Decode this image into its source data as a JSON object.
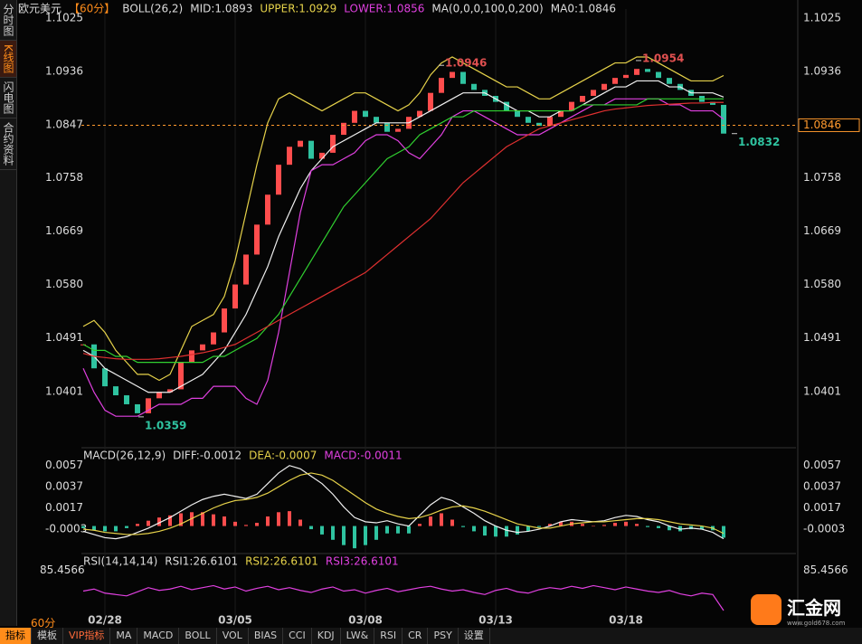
{
  "sidebar": [
    "分时图",
    "K线图",
    "闪电图",
    "合约资料"
  ],
  "header": [
    {
      "text": "欧元美元",
      "color": "#dddddd"
    },
    {
      "text": "【60分】",
      "color": "#ff8c1a"
    },
    {
      "text": "BOLL(26,2)",
      "color": "#dddddd"
    },
    {
      "text": "MID:1.0893",
      "color": "#dddddd"
    },
    {
      "text": "UPPER:1.0929",
      "color": "#e6d24a"
    },
    {
      "text": "LOWER:1.0856",
      "color": "#e040e0"
    },
    {
      "text": "MA(0,0,0,100,0,200)",
      "color": "#dddddd"
    },
    {
      "text": "MA0:1.0846",
      "color": "#dddddd"
    }
  ],
  "price": {
    "ylim": [
      1.0315,
      1.104
    ],
    "yticks": [
      {
        "value": 1.1025,
        "label": "1.1025"
      },
      {
        "value": 1.0936,
        "label": "1.0936"
      },
      {
        "value": 1.0847,
        "label": "1.0847"
      },
      {
        "value": 1.0758,
        "label": "1.0758"
      },
      {
        "value": 1.0669,
        "label": "1.0669"
      },
      {
        "value": 1.058,
        "label": "1.0580"
      },
      {
        "value": 1.0491,
        "label": "1.0491"
      },
      {
        "value": 1.0401,
        "label": "1.0401"
      }
    ],
    "close": [
      1.048,
      1.044,
      1.041,
      1.0395,
      1.038,
      1.0365,
      1.039,
      1.04,
      1.0405,
      1.045,
      1.047,
      1.048,
      1.05,
      1.054,
      1.058,
      1.063,
      1.068,
      1.073,
      1.078,
      1.081,
      1.082,
      1.079,
      1.08,
      1.083,
      1.085,
      1.087,
      1.086,
      1.085,
      1.0835,
      1.084,
      1.086,
      1.087,
      1.09,
      1.0925,
      1.0935,
      1.0915,
      1.0905,
      1.0895,
      1.0885,
      1.087,
      1.086,
      1.085,
      1.0845,
      1.086,
      1.087,
      1.0885,
      1.0895,
      1.0905,
      1.0915,
      1.0925,
      1.093,
      1.094,
      1.0935,
      1.0925,
      1.0915,
      1.0905,
      1.0895,
      1.0885,
      1.088,
      1.0832
    ],
    "up_color": "#ff4d4d",
    "down_color": "#2fc3a0",
    "lines": [
      {
        "color": "#e6d24a",
        "values": [
          1.051,
          1.052,
          1.05,
          1.047,
          1.045,
          1.043,
          1.043,
          1.042,
          1.043,
          1.047,
          1.051,
          1.052,
          1.053,
          1.056,
          1.062,
          1.07,
          1.078,
          1.085,
          1.089,
          1.09,
          1.089,
          1.088,
          1.087,
          1.088,
          1.089,
          1.09,
          1.09,
          1.089,
          1.088,
          1.087,
          1.088,
          1.09,
          1.093,
          1.095,
          1.096,
          1.095,
          1.094,
          1.093,
          1.092,
          1.091,
          1.091,
          1.09,
          1.089,
          1.089,
          1.09,
          1.091,
          1.092,
          1.093,
          1.094,
          1.095,
          1.095,
          1.096,
          1.096,
          1.095,
          1.094,
          1.093,
          1.092,
          1.092,
          1.092,
          1.0929
        ]
      },
      {
        "color": "#f0f0f0",
        "values": [
          1.047,
          1.046,
          1.044,
          1.043,
          1.042,
          1.041,
          1.04,
          1.04,
          1.04,
          1.041,
          1.042,
          1.043,
          1.045,
          1.047,
          1.05,
          1.053,
          1.057,
          1.061,
          1.066,
          1.07,
          1.074,
          1.077,
          1.079,
          1.081,
          1.082,
          1.083,
          1.084,
          1.085,
          1.085,
          1.085,
          1.085,
          1.086,
          1.087,
          1.088,
          1.089,
          1.09,
          1.09,
          1.09,
          1.089,
          1.088,
          1.087,
          1.087,
          1.086,
          1.086,
          1.087,
          1.087,
          1.088,
          1.089,
          1.09,
          1.091,
          1.091,
          1.092,
          1.092,
          1.092,
          1.091,
          1.091,
          1.09,
          1.09,
          1.09,
          1.0893
        ]
      },
      {
        "color": "#e040e0",
        "values": [
          1.044,
          1.04,
          1.037,
          1.036,
          1.036,
          1.036,
          1.037,
          1.038,
          1.038,
          1.038,
          1.039,
          1.039,
          1.041,
          1.041,
          1.041,
          1.039,
          1.038,
          1.042,
          1.05,
          1.06,
          1.07,
          1.077,
          1.078,
          1.078,
          1.079,
          1.08,
          1.082,
          1.083,
          1.083,
          1.082,
          1.08,
          1.079,
          1.081,
          1.083,
          1.086,
          1.087,
          1.087,
          1.086,
          1.085,
          1.084,
          1.083,
          1.083,
          1.083,
          1.084,
          1.085,
          1.086,
          1.087,
          1.088,
          1.088,
          1.089,
          1.089,
          1.089,
          1.089,
          1.089,
          1.088,
          1.088,
          1.087,
          1.087,
          1.087,
          1.0856
        ]
      },
      {
        "color": "#30d030",
        "values": [
          1.048,
          1.047,
          1.047,
          1.046,
          1.046,
          1.045,
          1.045,
          1.045,
          1.045,
          1.045,
          1.045,
          1.045,
          1.046,
          1.046,
          1.047,
          1.048,
          1.049,
          1.051,
          1.053,
          1.056,
          1.059,
          1.062,
          1.065,
          1.068,
          1.071,
          1.073,
          1.075,
          1.077,
          1.079,
          1.08,
          1.081,
          1.083,
          1.084,
          1.085,
          1.086,
          1.086,
          1.087,
          1.087,
          1.087,
          1.087,
          1.087,
          1.087,
          1.087,
          1.087,
          1.087,
          1.087,
          1.088,
          1.088,
          1.088,
          1.088,
          1.088,
          1.088,
          1.089,
          1.089,
          1.089,
          1.089,
          1.089,
          1.089,
          1.089,
          1.089
        ]
      },
      {
        "color": "#e03030",
        "values": [
          1.0465,
          1.046,
          1.0458,
          1.0456,
          1.0455,
          1.0455,
          1.0455,
          1.0456,
          1.0458,
          1.046,
          1.0463,
          1.0466,
          1.047,
          1.0475,
          1.048,
          1.049,
          1.05,
          1.051,
          1.052,
          1.053,
          1.054,
          1.055,
          1.056,
          1.057,
          1.058,
          1.059,
          1.06,
          1.0615,
          1.063,
          1.0645,
          1.066,
          1.0675,
          1.069,
          1.071,
          1.073,
          1.075,
          1.0765,
          1.078,
          1.0795,
          1.081,
          1.082,
          1.083,
          1.084,
          1.0845,
          1.085,
          1.0855,
          1.086,
          1.0865,
          1.087,
          1.0873,
          1.0875,
          1.0877,
          1.0879,
          1.088,
          1.0881,
          1.0882,
          1.0883,
          1.0883,
          1.0884,
          1.0884
        ]
      }
    ],
    "annotations": {
      "high1": 1.0946,
      "high2": 1.0954,
      "low": 1.0359,
      "last": 1.0832
    },
    "current": {
      "value": 1.0846,
      "label": "1.0846",
      "color": "#ff9a2e"
    }
  },
  "dates": [
    null,
    null,
    "02/28",
    null,
    null,
    null,
    null,
    null,
    null,
    null,
    null,
    null,
    null,
    null,
    "03/05",
    null,
    null,
    null,
    null,
    null,
    null,
    null,
    null,
    null,
    null,
    null,
    "03/08",
    null,
    null,
    null,
    null,
    null,
    null,
    null,
    null,
    null,
    null,
    null,
    "03/13",
    null,
    null,
    null,
    null,
    null,
    null,
    null,
    null,
    null,
    null,
    null,
    "03/18",
    null,
    null,
    null,
    null,
    null,
    null,
    null,
    null,
    null
  ],
  "macd": {
    "header": [
      {
        "text": "MACD(26,12,9)",
        "color": "#dddddd"
      },
      {
        "text": "DIFF:-0.0012",
        "color": "#dddddd"
      },
      {
        "text": "DEA:-0.0007",
        "color": "#e6d24a"
      },
      {
        "text": "MACD:-0.0011",
        "color": "#e040e0"
      }
    ],
    "ylim": [
      -0.002,
      0.0067
    ],
    "yticks": [
      0.0057,
      0.0037,
      0.0017,
      -0.0003
    ],
    "diff": {
      "color": "#f0f0f0",
      "values": [
        -0.0005,
        -0.0008,
        -0.0011,
        -0.0012,
        -0.001,
        -0.0006,
        -0.0002,
        0.0003,
        0.0008,
        0.0014,
        0.002,
        0.0025,
        0.0028,
        0.003,
        0.0028,
        0.0026,
        0.003,
        0.004,
        0.005,
        0.0057,
        0.0054,
        0.0047,
        0.004,
        0.003,
        0.0018,
        0.0008,
        0.0004,
        0.0003,
        0.0005,
        0.0002,
        0,
        0.001,
        0.002,
        0.0027,
        0.0024,
        0.0018,
        0.0012,
        0.0005,
        0,
        -0.0004,
        -0.0006,
        -0.0005,
        -0.0003,
        0,
        0.0004,
        0.0006,
        0.0005,
        0.0004,
        0.0005,
        0.0008,
        0.001,
        0.0009,
        0.0006,
        0.0004,
        0,
        -0.0003,
        -0.0002,
        -0.0003,
        -0.0006,
        -0.0012
      ]
    },
    "dea": {
      "color": "#e6d24a",
      "values": [
        -0.0003,
        -0.0004,
        -0.0006,
        -0.0007,
        -0.0008,
        -0.0008,
        -0.0007,
        -0.0005,
        -0.0002,
        0.0002,
        0.0007,
        0.0012,
        0.0017,
        0.0021,
        0.0024,
        0.0025,
        0.0027,
        0.0031,
        0.0037,
        0.0043,
        0.0048,
        0.005,
        0.0048,
        0.0043,
        0.0036,
        0.0029,
        0.0022,
        0.0016,
        0.0012,
        0.0009,
        0.0007,
        0.0008,
        0.0011,
        0.0015,
        0.0018,
        0.0019,
        0.0017,
        0.0014,
        0.001,
        0.0006,
        0.0002,
        0,
        -0.0002,
        -0.0002,
        0,
        0.0002,
        0.0003,
        0.0004,
        0.0004,
        0.0005,
        0.0006,
        0.0007,
        0.0007,
        0.0006,
        0.0004,
        0.0002,
        0.0001,
        0,
        -0.0002,
        -0.0007
      ]
    },
    "hist": [
      -0.0002,
      -0.0004,
      -0.0005,
      -0.0005,
      -0.0002,
      0.0002,
      0.0005,
      0.0008,
      0.001,
      0.0012,
      0.0013,
      0.0013,
      0.0011,
      0.0009,
      0.0004,
      0.0001,
      0.0003,
      0.0009,
      0.0013,
      0.0014,
      0.0006,
      -0.0003,
      -0.0008,
      -0.0013,
      -0.0018,
      -0.0021,
      -0.0018,
      -0.0013,
      -0.0007,
      -0.0007,
      -0.0007,
      0.0002,
      0.0009,
      0.0012,
      0.0006,
      -0.0001,
      -0.0005,
      -0.0009,
      -0.001,
      -0.001,
      -0.0008,
      -0.0005,
      -0.0001,
      0.0002,
      0.0004,
      0.0004,
      0.0002,
      0,
      0.0001,
      0.0003,
      0.0004,
      0.0002,
      -0.0001,
      -0.0002,
      -0.0004,
      -0.0005,
      -0.0003,
      -0.0003,
      -0.0004,
      -0.0011
    ]
  },
  "rsi": {
    "header": [
      {
        "text": "RSI(14,14,14)",
        "color": "#dddddd"
      },
      {
        "text": "RSI1:26.6101",
        "color": "#dddddd"
      },
      {
        "text": "RSI2:26.6101",
        "color": "#e6d24a"
      },
      {
        "text": "RSI3:26.6101",
        "color": "#e040e0"
      }
    ],
    "ylim": [
      20,
      90
    ],
    "yticks": [
      85.4566
    ],
    "color": "#e040e0",
    "values": [
      55,
      58,
      52,
      50,
      48,
      54,
      60,
      56,
      58,
      62,
      57,
      60,
      63,
      58,
      61,
      55,
      59,
      62,
      57,
      60,
      56,
      53,
      58,
      61,
      55,
      57,
      52,
      56,
      59,
      54,
      57,
      60,
      62,
      58,
      55,
      57,
      53,
      50,
      56,
      59,
      54,
      52,
      57,
      60,
      58,
      62,
      59,
      63,
      60,
      57,
      61,
      58,
      55,
      53,
      56,
      51,
      48,
      52,
      50,
      26.6101
    ]
  },
  "period": "60分",
  "tabs": [
    "指标",
    "模板",
    "VIP指标",
    "MA",
    "MACD",
    "BOLL",
    "VOL",
    "BIAS",
    "CCI",
    "KDJ",
    "LW&",
    "RSI",
    "CR",
    "PSY",
    "设置"
  ],
  "logo": {
    "name": "汇金网",
    "url": "www.gold678.com"
  }
}
